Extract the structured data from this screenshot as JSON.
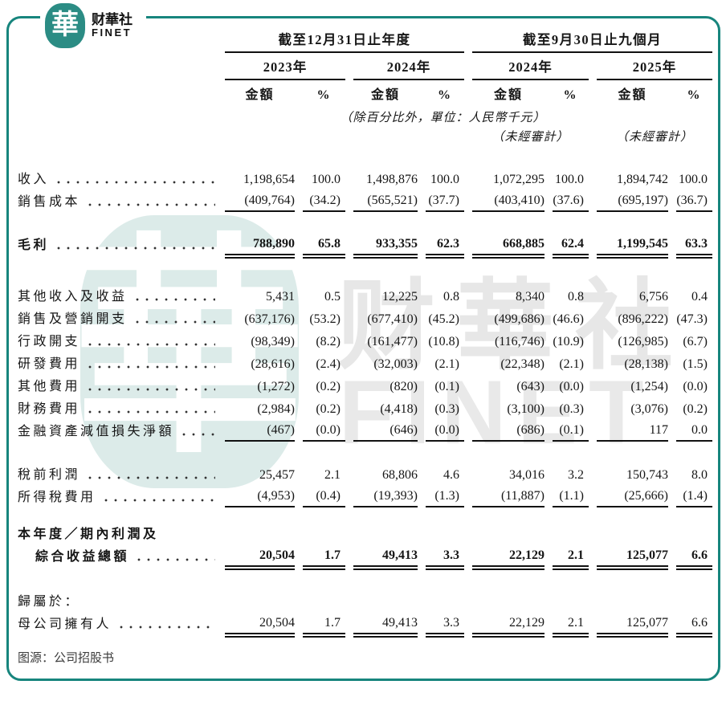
{
  "logo": {
    "symbol": "華",
    "name_cn": "财華社",
    "name_en": "FINET"
  },
  "watermark": {
    "symbol": "華",
    "name_cn": "财華社",
    "name_en": "FINET"
  },
  "colors": {
    "frame_teal": "#17857d",
    "logo_teal": "#2b8c84",
    "watermark_teal": "#dcebe9",
    "watermark_gray": "#e7e7e7",
    "text": "#161616"
  },
  "table": {
    "groups": [
      {
        "title": "截至12月31日止年度",
        "years": [
          "2023年",
          "2024年"
        ]
      },
      {
        "title": "截至9月30日止九個月",
        "years": [
          "2024年",
          "2025年"
        ]
      }
    ],
    "amount_label": "金額",
    "pct_label": "%",
    "note": "（除百分比外，單位：人民幣千元）",
    "unaudited": "（未經審計）",
    "rows": [
      {
        "label": "收入",
        "dots": true,
        "values": [
          "1,198,654",
          "100.0",
          "1,498,876",
          "100.0",
          "1,072,295",
          "100.0",
          "1,894,742",
          "100.0"
        ]
      },
      {
        "label": "銷售成本",
        "dots": true,
        "u": "s",
        "values": [
          "(409,764)",
          "(34.2)",
          "(565,521)",
          "(37.7)",
          "(403,410)",
          "(37.6)",
          "(695,197)",
          "(36.7)"
        ]
      },
      {
        "spacer": 26
      },
      {
        "label": "毛利",
        "dots": true,
        "bold": true,
        "u": "d",
        "values": [
          "788,890",
          "65.8",
          "933,355",
          "62.3",
          "668,885",
          "62.4",
          "1,199,545",
          "63.3"
        ]
      },
      {
        "spacer": 36
      },
      {
        "label": "其他收入及收益",
        "dots": true,
        "values": [
          "5,431",
          "0.5",
          "12,225",
          "0.8",
          "8,340",
          "0.8",
          "6,756",
          "0.4"
        ]
      },
      {
        "label": "銷售及營銷開支",
        "dots": true,
        "values": [
          "(637,176)",
          "(53.2)",
          "(677,410)",
          "(45.2)",
          "(499,686)",
          "(46.6)",
          "(896,222)",
          "(47.3)"
        ]
      },
      {
        "label": "行政開支",
        "dots": true,
        "values": [
          "(98,349)",
          "(8.2)",
          "(161,477)",
          "(10.8)",
          "(116,746)",
          "(10.9)",
          "(126,985)",
          "(6.7)"
        ]
      },
      {
        "label": "研發費用",
        "dots": true,
        "values": [
          "(28,616)",
          "(2.4)",
          "(32,003)",
          "(2.1)",
          "(22,348)",
          "(2.1)",
          "(28,138)",
          "(1.5)"
        ]
      },
      {
        "label": "其他費用",
        "dots": true,
        "values": [
          "(1,272)",
          "(0.2)",
          "(820)",
          "(0.1)",
          "(643)",
          "(0.0)",
          "(1,254)",
          "(0.0)"
        ]
      },
      {
        "label": "財務費用",
        "dots": true,
        "values": [
          "(2,984)",
          "(0.2)",
          "(4,418)",
          "(0.3)",
          "(3,100)",
          "(0.3)",
          "(3,076)",
          "(0.2)"
        ]
      },
      {
        "label": "金融資產減值損失淨額",
        "dots": true,
        "u": "s",
        "values": [
          "(467)",
          "(0.0)",
          "(646)",
          "(0.0)",
          "(686)",
          "(0.1)",
          "117",
          "0.0"
        ]
      },
      {
        "spacer": 26
      },
      {
        "label": "稅前利潤",
        "dots": true,
        "values": [
          "25,457",
          "2.1",
          "68,806",
          "4.6",
          "34,016",
          "3.2",
          "150,743",
          "8.0"
        ]
      },
      {
        "label": "所得稅費用",
        "dots": true,
        "u": "s",
        "values": [
          "(4,953)",
          "(0.4)",
          "(19,393)",
          "(1.3)",
          "(11,887)",
          "(1.1)",
          "(25,666)",
          "(1.4)"
        ]
      },
      {
        "spacer": 18
      },
      {
        "label": "本年度／期內利潤及",
        "dots": false,
        "bold": true,
        "values": []
      },
      {
        "label": "綜合收益總額",
        "dots": true,
        "bold": true,
        "indent": true,
        "u": "d",
        "values": [
          "20,504",
          "1.7",
          "49,413",
          "3.3",
          "22,129",
          "2.1",
          "125,077",
          "6.6"
        ]
      },
      {
        "spacer": 28
      },
      {
        "label": "歸屬於：",
        "dots": false,
        "values": []
      },
      {
        "label": "母公司擁有人",
        "dots": true,
        "u": "d",
        "values": [
          "20,504",
          "1.7",
          "49,413",
          "3.3",
          "22,129",
          "2.1",
          "125,077",
          "6.6"
        ]
      }
    ]
  },
  "caption": {
    "text": "图源：公司招股书"
  }
}
